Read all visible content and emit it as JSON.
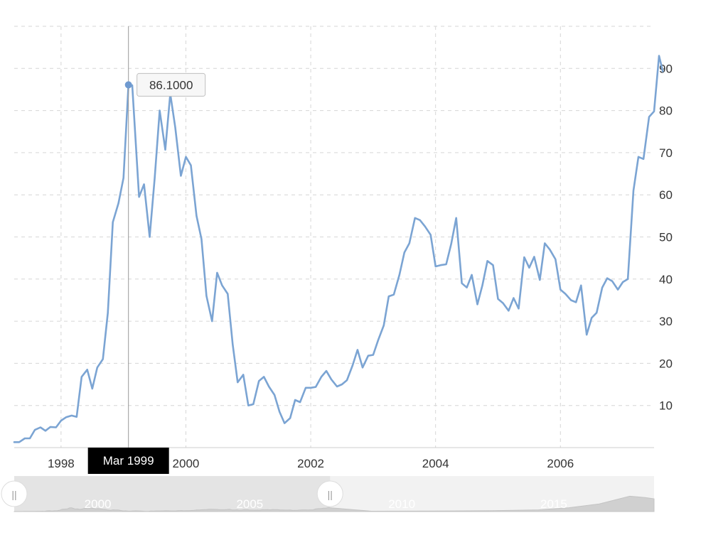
{
  "chart_data": {
    "type": "line",
    "title": "",
    "xlabel": "",
    "ylabel": "",
    "ylim": [
      0,
      100
    ],
    "xlim": [
      1997.25,
      2007.5
    ],
    "yticks": [
      10,
      20,
      30,
      40,
      50,
      60,
      70,
      80,
      90
    ],
    "xticks": [
      {
        "value": 1998,
        "label": "1998"
      },
      {
        "value": 2000,
        "label": "2000"
      },
      {
        "value": 2002,
        "label": "2002"
      },
      {
        "value": 2004,
        "label": "2004"
      },
      {
        "value": 2006,
        "label": "2006"
      }
    ],
    "grid": true,
    "series_color": "#7ba4d3",
    "series": [
      {
        "values": [
          [
            1997.25,
            1.3
          ],
          [
            1997.33,
            1.3
          ],
          [
            1997.42,
            2.2
          ],
          [
            1997.5,
            2.2
          ],
          [
            1997.58,
            4.2
          ],
          [
            1997.67,
            4.8
          ],
          [
            1997.75,
            4.0
          ],
          [
            1997.83,
            4.9
          ],
          [
            1997.92,
            4.8
          ],
          [
            1998.0,
            6.4
          ],
          [
            1998.08,
            7.2
          ],
          [
            1998.17,
            7.6
          ],
          [
            1998.25,
            7.3
          ],
          [
            1998.33,
            16.8
          ],
          [
            1998.42,
            18.5
          ],
          [
            1998.5,
            14.0
          ],
          [
            1998.58,
            19.0
          ],
          [
            1998.67,
            21.0
          ],
          [
            1998.75,
            32.0
          ],
          [
            1998.83,
            53.5
          ],
          [
            1998.92,
            58.0
          ],
          [
            1999.0,
            64.0
          ],
          [
            1999.08,
            86.1
          ],
          [
            1999.14,
            86.0
          ],
          [
            1999.25,
            59.5
          ],
          [
            1999.33,
            62.5
          ],
          [
            1999.42,
            50.0
          ],
          [
            1999.5,
            64.0
          ],
          [
            1999.58,
            80.0
          ],
          [
            1999.67,
            70.7
          ],
          [
            1999.75,
            84.0
          ],
          [
            1999.83,
            76.0
          ],
          [
            1999.92,
            64.5
          ],
          [
            2000.0,
            69.0
          ],
          [
            2000.08,
            67.0
          ],
          [
            2000.17,
            55.0
          ],
          [
            2000.25,
            49.5
          ],
          [
            2000.33,
            36.0
          ],
          [
            2000.42,
            30.0
          ],
          [
            2000.5,
            41.5
          ],
          [
            2000.58,
            38.5
          ],
          [
            2000.67,
            36.5
          ],
          [
            2000.75,
            24.5
          ],
          [
            2000.83,
            15.5
          ],
          [
            2000.92,
            17.3
          ],
          [
            2001.0,
            10.0
          ],
          [
            2001.08,
            10.3
          ],
          [
            2001.17,
            15.8
          ],
          [
            2001.25,
            16.8
          ],
          [
            2001.33,
            14.5
          ],
          [
            2001.42,
            12.5
          ],
          [
            2001.5,
            8.5
          ],
          [
            2001.58,
            5.8
          ],
          [
            2001.67,
            7.0
          ],
          [
            2001.75,
            11.3
          ],
          [
            2001.83,
            10.8
          ],
          [
            2001.92,
            14.2
          ],
          [
            2002.0,
            14.2
          ],
          [
            2002.08,
            14.4
          ],
          [
            2002.17,
            16.8
          ],
          [
            2002.25,
            18.2
          ],
          [
            2002.33,
            16.2
          ],
          [
            2002.42,
            14.5
          ],
          [
            2002.5,
            15.0
          ],
          [
            2002.58,
            16.0
          ],
          [
            2002.67,
            19.5
          ],
          [
            2002.75,
            23.2
          ],
          [
            2002.83,
            19.0
          ],
          [
            2002.92,
            21.8
          ],
          [
            2003.0,
            22.0
          ],
          [
            2003.08,
            25.5
          ],
          [
            2003.17,
            29.0
          ],
          [
            2003.25,
            35.9
          ],
          [
            2003.33,
            36.3
          ],
          [
            2003.42,
            41.0
          ],
          [
            2003.5,
            46.3
          ],
          [
            2003.58,
            48.5
          ],
          [
            2003.67,
            54.5
          ],
          [
            2003.75,
            54.0
          ],
          [
            2003.83,
            52.5
          ],
          [
            2003.92,
            50.5
          ],
          [
            2004.0,
            43.0
          ],
          [
            2004.08,
            43.3
          ],
          [
            2004.17,
            43.5
          ],
          [
            2004.25,
            48.3
          ],
          [
            2004.33,
            54.5
          ],
          [
            2004.42,
            39.0
          ],
          [
            2004.5,
            38.0
          ],
          [
            2004.58,
            41.0
          ],
          [
            2004.67,
            34.0
          ],
          [
            2004.75,
            38.5
          ],
          [
            2004.83,
            44.3
          ],
          [
            2004.92,
            43.3
          ],
          [
            2005.0,
            35.3
          ],
          [
            2005.08,
            34.3
          ],
          [
            2005.17,
            32.5
          ],
          [
            2005.25,
            35.5
          ],
          [
            2005.33,
            33.0
          ],
          [
            2005.42,
            45.2
          ],
          [
            2005.5,
            42.7
          ],
          [
            2005.58,
            45.3
          ],
          [
            2005.67,
            39.8
          ],
          [
            2005.75,
            48.5
          ],
          [
            2005.83,
            47.0
          ],
          [
            2005.92,
            44.7
          ],
          [
            2006.0,
            37.5
          ],
          [
            2006.08,
            36.5
          ],
          [
            2006.17,
            35.0
          ],
          [
            2006.25,
            34.5
          ],
          [
            2006.33,
            38.5
          ],
          [
            2006.42,
            26.8
          ],
          [
            2006.5,
            30.8
          ],
          [
            2006.58,
            32.0
          ],
          [
            2006.67,
            38.0
          ],
          [
            2006.75,
            40.2
          ],
          [
            2006.83,
            39.5
          ],
          [
            2006.92,
            37.5
          ],
          [
            2007.0,
            39.3
          ],
          [
            2007.08,
            40.0
          ],
          [
            2007.17,
            61.0
          ],
          [
            2007.25,
            69.0
          ],
          [
            2007.33,
            68.5
          ],
          [
            2007.42,
            78.5
          ],
          [
            2007.5,
            79.8
          ],
          [
            2007.58,
            93.0
          ],
          [
            2007.64,
            89.3
          ]
        ]
      }
    ],
    "tooltip": {
      "x": 1999.08,
      "y": 86.1,
      "value_label": "86.1000",
      "date_label": "Mar 1999"
    }
  },
  "navigator": {
    "labels": [
      {
        "year": 2000,
        "label": "2000"
      },
      {
        "year": 2005,
        "label": "2005"
      },
      {
        "year": 2010,
        "label": "2010"
      },
      {
        "year": 2015,
        "label": "2015"
      }
    ],
    "handle_symbol": "||",
    "range_start_year": 1997.25,
    "range_end_year": 2007.64
  }
}
